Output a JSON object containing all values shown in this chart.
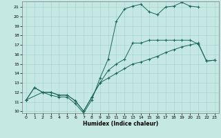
{
  "xlabel": "Humidex (Indice chaleur)",
  "bg_color": "#c5e8e3",
  "grid_color": "#a8d4ce",
  "line_color": "#1a6655",
  "xlim": [
    -0.5,
    23.5
  ],
  "ylim": [
    9.8,
    21.6
  ],
  "yticks": [
    10,
    11,
    12,
    13,
    14,
    15,
    16,
    17,
    18,
    19,
    20,
    21
  ],
  "xticks": [
    0,
    1,
    2,
    3,
    4,
    5,
    6,
    7,
    8,
    9,
    10,
    11,
    12,
    13,
    14,
    15,
    16,
    17,
    18,
    19,
    20,
    21,
    22,
    23
  ],
  "line1_x": [
    0,
    1,
    2,
    3,
    4,
    5,
    6,
    7,
    8,
    9,
    10,
    11,
    12,
    13,
    14,
    15,
    16,
    17,
    18,
    19,
    20,
    21,
    22,
    23
  ],
  "line1_y": [
    11.2,
    12.5,
    12.0,
    12.0,
    11.7,
    11.7,
    11.1,
    10.0,
    11.5,
    13.0,
    14.3,
    15.0,
    15.5,
    17.2,
    17.2,
    17.5,
    17.5,
    17.5,
    17.5,
    17.5,
    17.5,
    17.1,
    15.3,
    15.4
  ],
  "line2_x": [
    0,
    1,
    2,
    3,
    4,
    5,
    6,
    7,
    8,
    9,
    10,
    11,
    12,
    13,
    14,
    15,
    16,
    17,
    18,
    19,
    20,
    21
  ],
  "line2_y": [
    11.2,
    12.5,
    12.0,
    11.7,
    11.5,
    11.5,
    10.8,
    9.8,
    11.2,
    13.5,
    15.5,
    19.5,
    20.8,
    21.1,
    21.3,
    20.5,
    20.2,
    21.0,
    21.1,
    21.5,
    21.1,
    21.0
  ],
  "line3_x": [
    0,
    2,
    3,
    4,
    5,
    6,
    7,
    8,
    9,
    10,
    11,
    12,
    13,
    14,
    15,
    16,
    17,
    18,
    19,
    20,
    21,
    22,
    23
  ],
  "line3_y": [
    11.2,
    12.0,
    12.0,
    11.7,
    11.7,
    11.1,
    10.0,
    11.5,
    13.0,
    13.5,
    14.0,
    14.5,
    15.0,
    15.2,
    15.5,
    15.8,
    16.2,
    16.5,
    16.8,
    17.0,
    17.2,
    15.3,
    15.4
  ]
}
